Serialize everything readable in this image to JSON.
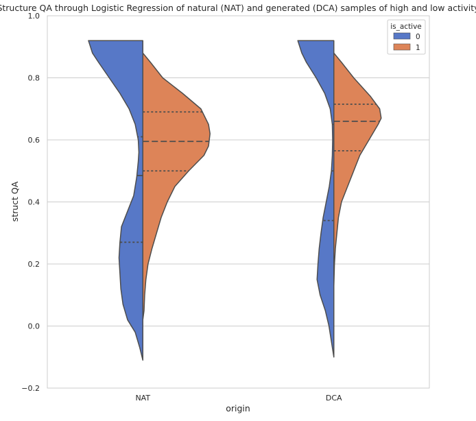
{
  "chart_data": {
    "type": "violin",
    "title": "Structure QA through Logistic Regression of natural (NAT) and generated (DCA) samples of high and low activity",
    "xlabel": "origin",
    "ylabel": "struct QA",
    "categories": [
      "NAT",
      "DCA"
    ],
    "ylim": [
      -0.2,
      1.0
    ],
    "yticks": [
      "−0.2",
      "0.0",
      "0.2",
      "0.4",
      "0.6",
      "0.8",
      "1.0"
    ],
    "grid": true,
    "split": true,
    "inner": "quartile",
    "legend": {
      "title": "is_active",
      "placement": "top-right",
      "entries": [
        {
          "label": "0",
          "color": "#5778c7"
        },
        {
          "label": "1",
          "color": "#dd8458"
        }
      ]
    },
    "series": [
      {
        "name": "0",
        "color": "#5778c7",
        "groups": [
          {
            "category": "NAT",
            "quartiles": [
              0.27,
              0.485,
              0.61
            ],
            "profile": [
              [
                -0.11,
                0.0
              ],
              [
                -0.07,
                0.01
              ],
              [
                -0.02,
                0.025
              ],
              [
                0.02,
                0.05
              ],
              [
                0.07,
                0.065
              ],
              [
                0.12,
                0.072
              ],
              [
                0.17,
                0.075
              ],
              [
                0.22,
                0.078
              ],
              [
                0.27,
                0.075
              ],
              [
                0.32,
                0.07
              ],
              [
                0.37,
                0.05
              ],
              [
                0.42,
                0.03
              ],
              [
                0.48,
                0.02
              ],
              [
                0.53,
                0.015
              ],
              [
                0.56,
                0.013
              ],
              [
                0.6,
                0.015
              ],
              [
                0.65,
                0.025
              ],
              [
                0.7,
                0.045
              ],
              [
                0.75,
                0.075
              ],
              [
                0.8,
                0.11
              ],
              [
                0.85,
                0.145
              ],
              [
                0.88,
                0.165
              ],
              [
                0.92,
                0.178
              ]
            ]
          },
          {
            "category": "DCA",
            "quartiles": [
              0.34,
              0.5,
              0.65
            ],
            "profile": [
              [
                -0.1,
                0.0
              ],
              [
                -0.05,
                0.008
              ],
              [
                0.0,
                0.016
              ],
              [
                0.05,
                0.028
              ],
              [
                0.1,
                0.045
              ],
              [
                0.15,
                0.055
              ],
              [
                0.2,
                0.052
              ],
              [
                0.25,
                0.048
              ],
              [
                0.3,
                0.042
              ],
              [
                0.35,
                0.035
              ],
              [
                0.4,
                0.025
              ],
              [
                0.45,
                0.015
              ],
              [
                0.5,
                0.008
              ],
              [
                0.55,
                0.005
              ],
              [
                0.6,
                0.004
              ],
              [
                0.65,
                0.005
              ],
              [
                0.7,
                0.012
              ],
              [
                0.75,
                0.03
              ],
              [
                0.8,
                0.058
              ],
              [
                0.85,
                0.09
              ],
              [
                0.88,
                0.105
              ],
              [
                0.92,
                0.118
              ]
            ]
          }
        ]
      },
      {
        "name": "1",
        "color": "#dd8458",
        "groups": [
          {
            "category": "NAT",
            "quartiles": [
              0.5,
              0.595,
              0.69
            ],
            "profile": [
              [
                0.02,
                0.0
              ],
              [
                0.05,
                0.004
              ],
              [
                0.1,
                0.006
              ],
              [
                0.15,
                0.01
              ],
              [
                0.2,
                0.017
              ],
              [
                0.25,
                0.03
              ],
              [
                0.3,
                0.045
              ],
              [
                0.35,
                0.06
              ],
              [
                0.4,
                0.08
              ],
              [
                0.45,
                0.105
              ],
              [
                0.5,
                0.15
              ],
              [
                0.55,
                0.2
              ],
              [
                0.58,
                0.215
              ],
              [
                0.62,
                0.22
              ],
              [
                0.65,
                0.215
              ],
              [
                0.7,
                0.19
              ],
              [
                0.75,
                0.13
              ],
              [
                0.8,
                0.065
              ],
              [
                0.85,
                0.025
              ],
              [
                0.88,
                0.0
              ]
            ]
          },
          {
            "category": "DCA",
            "quartiles": [
              0.565,
              0.66,
              0.715
            ],
            "profile": [
              [
                0.13,
                0.0
              ],
              [
                0.2,
                0.002
              ],
              [
                0.25,
                0.005
              ],
              [
                0.3,
                0.01
              ],
              [
                0.35,
                0.015
              ],
              [
                0.4,
                0.025
              ],
              [
                0.45,
                0.045
              ],
              [
                0.5,
                0.065
              ],
              [
                0.55,
                0.085
              ],
              [
                0.6,
                0.115
              ],
              [
                0.65,
                0.145
              ],
              [
                0.67,
                0.155
              ],
              [
                0.7,
                0.15
              ],
              [
                0.74,
                0.12
              ],
              [
                0.8,
                0.065
              ],
              [
                0.85,
                0.025
              ],
              [
                0.88,
                0.0
              ]
            ]
          }
        ]
      }
    ]
  }
}
